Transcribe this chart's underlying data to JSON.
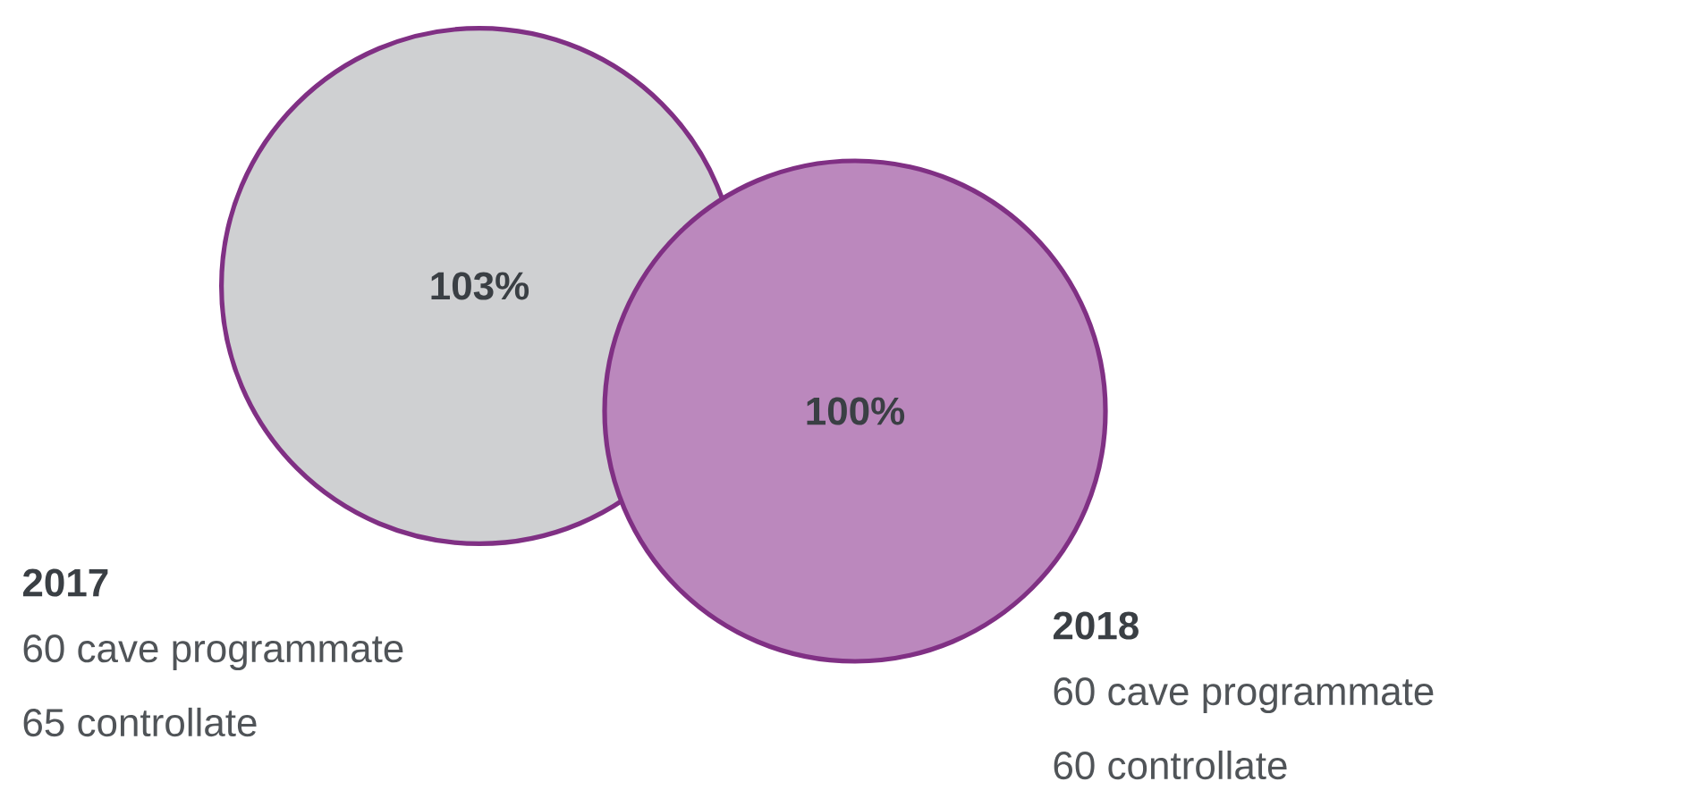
{
  "chart_data": {
    "type": "other",
    "categories": [
      "2017",
      "2018"
    ],
    "values": [
      103,
      100
    ],
    "colors": [
      "#cfd0d2",
      "#bb88bd"
    ],
    "value_labels": [
      "103%",
      "100%"
    ],
    "annotations": [
      "60 cave programmate",
      "65 controllate",
      "60 cave programmate",
      "60 controllate"
    ]
  }
}
